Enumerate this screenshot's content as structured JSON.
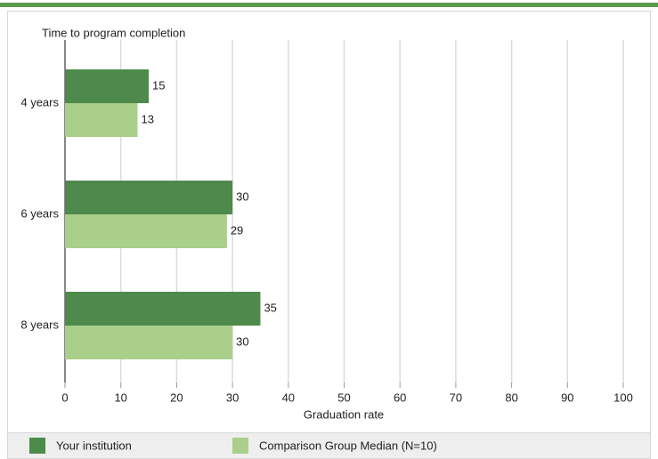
{
  "chart_data": {
    "type": "bar",
    "orientation": "horizontal",
    "title": "Time to program completion",
    "x_label": "Graduation rate",
    "categories": [
      "4 years",
      "6 years",
      "8 years"
    ],
    "series": [
      {
        "name": "Your institution",
        "color": "#4e8a4b",
        "values": [
          15,
          30,
          35
        ]
      },
      {
        "name": "Comparison Group Median (N=10)",
        "color": "#a9cf8a",
        "values": [
          13,
          29,
          30
        ]
      }
    ],
    "xlim": [
      0,
      100
    ],
    "xticks": [
      0,
      10,
      20,
      30,
      40,
      50,
      60,
      70,
      80,
      90,
      100
    ],
    "grid": true
  }
}
